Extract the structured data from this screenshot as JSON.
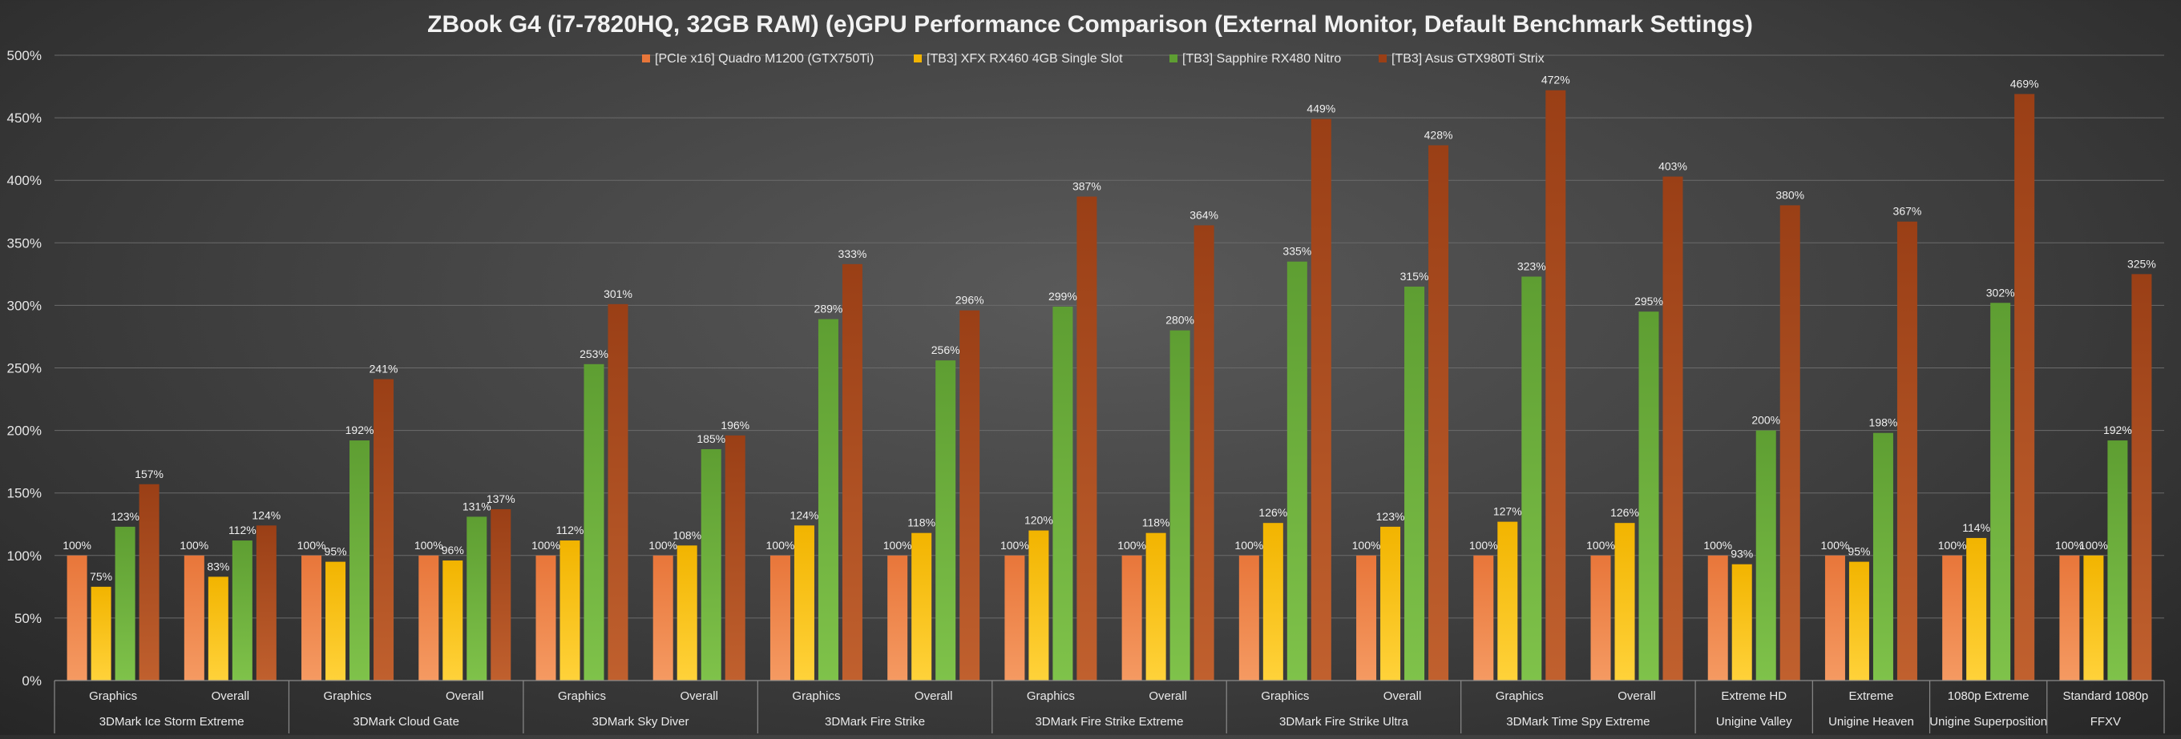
{
  "chart_data": {
    "type": "bar",
    "title": "ZBook G4 (i7-7820HQ, 32GB RAM) (e)GPU Performance Comparison (External Monitor, Default Benchmark Settings)",
    "xlabel": "",
    "ylabel": "",
    "ylim": [
      0,
      500
    ],
    "y_ticks": [
      "0%",
      "50%",
      "100%",
      "150%",
      "200%",
      "250%",
      "300%",
      "350%",
      "400%",
      "450%",
      "500%"
    ],
    "grid": true,
    "legend_position": "top-center",
    "categories": [
      {
        "label": "Graphics",
        "group": "3DMark Ice Storm Extreme"
      },
      {
        "label": "Overall",
        "group": "3DMark Ice Storm Extreme"
      },
      {
        "label": "Graphics",
        "group": "3DMark Cloud Gate"
      },
      {
        "label": "Overall",
        "group": "3DMark Cloud Gate"
      },
      {
        "label": "Graphics",
        "group": "3DMark Sky Diver"
      },
      {
        "label": "Overall",
        "group": "3DMark Sky Diver"
      },
      {
        "label": "Graphics",
        "group": "3DMark Fire Strike"
      },
      {
        "label": "Overall",
        "group": "3DMark Fire Strike"
      },
      {
        "label": "Graphics",
        "group": "3DMark Fire Strike Extreme"
      },
      {
        "label": "Overall",
        "group": "3DMark Fire Strike Extreme"
      },
      {
        "label": "Graphics",
        "group": "3DMark Fire Strike Ultra"
      },
      {
        "label": "Overall",
        "group": "3DMark Fire Strike Ultra"
      },
      {
        "label": "Graphics",
        "group": "3DMark Time Spy Extreme"
      },
      {
        "label": "Overall",
        "group": "3DMark Time Spy Extreme"
      },
      {
        "label": "Extreme HD",
        "group": "Unigine Valley"
      },
      {
        "label": "Extreme",
        "group": "Unigine Heaven"
      },
      {
        "label": "1080p Extreme",
        "group": "Unigine Superposition"
      },
      {
        "label": "Standard 1080p",
        "group": "FFXV"
      }
    ],
    "groups": [
      "3DMark Ice Storm Extreme",
      "3DMark Cloud Gate",
      "3DMark Sky Diver",
      "3DMark Fire Strike",
      "3DMark Fire Strike Extreme",
      "3DMark Fire Strike Ultra",
      "3DMark Time Spy Extreme",
      "Unigine Valley",
      "Unigine Heaven",
      "Unigine Superposition",
      "FFXV"
    ],
    "series": [
      {
        "name": "[PCIe x16] Quadro M1200 (GTX750Ti)",
        "color": "#e8763a",
        "color_light": "#f59a62",
        "values": [
          100,
          100,
          100,
          100,
          100,
          100,
          100,
          100,
          100,
          100,
          100,
          100,
          100,
          100,
          100,
          100,
          100,
          100
        ]
      },
      {
        "name": "[TB3] XFX RX460 4GB Single Slot",
        "color": "#f2b400",
        "color_light": "#ffd23a",
        "values": [
          75,
          83,
          95,
          96,
          112,
          108,
          124,
          118,
          120,
          118,
          126,
          123,
          127,
          126,
          93,
          95,
          114,
          100
        ]
      },
      {
        "name": "[TB3] Sapphire RX480 Nitro",
        "color": "#5e9e32",
        "color_light": "#7fc24a",
        "values": [
          123,
          112,
          192,
          131,
          253,
          185,
          289,
          256,
          299,
          280,
          335,
          315,
          323,
          295,
          200,
          198,
          302,
          192
        ]
      },
      {
        "name": "[TB3] Asus GTX980Ti Strix",
        "color": "#9a3f16",
        "color_light": "#c0602e",
        "values": [
          157,
          124,
          241,
          137,
          301,
          196,
          333,
          296,
          387,
          364,
          449,
          428,
          472,
          403,
          380,
          367,
          469,
          325
        ]
      }
    ]
  }
}
